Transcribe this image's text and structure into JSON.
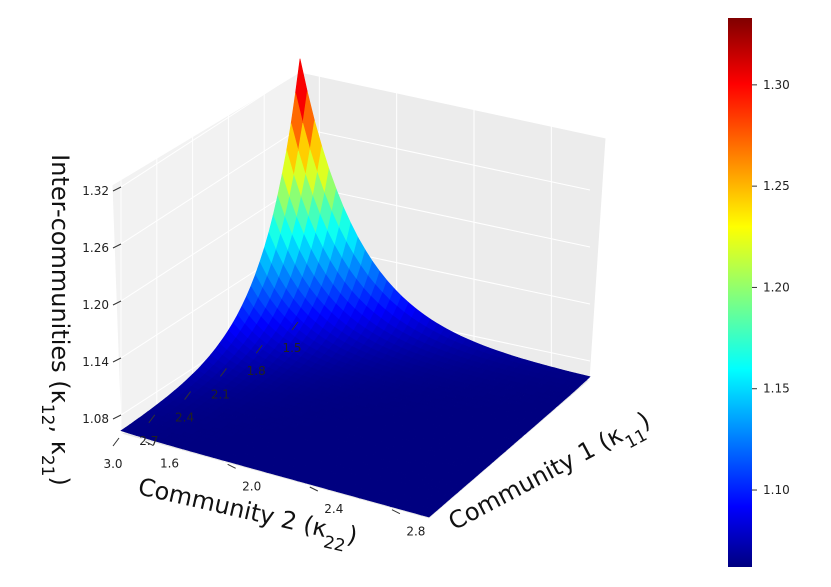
{
  "chart_data": {
    "type": "surface3d",
    "x": {
      "label": "Community 1 (κ",
      "sub": "11",
      "close": ")",
      "ticks": [
        1.6,
        2.0,
        2.4,
        2.8
      ],
      "range": [
        1.5,
        3.0
      ]
    },
    "y": {
      "label": "Community 2 (κ",
      "sub": "22",
      "close": ")",
      "ticks": [
        1.5,
        1.8,
        2.1,
        2.4,
        2.7,
        3.0
      ],
      "range": [
        1.5,
        3.0
      ]
    },
    "z": {
      "label_a": "Inter-communities (κ",
      "sub_a": "12",
      "label_b": ", κ",
      "sub_b": "21",
      "close": ")",
      "ticks": [
        1.08,
        1.14,
        1.2,
        1.26,
        1.32
      ],
      "range": [
        1.06,
        1.34
      ]
    },
    "surface": {
      "peak": {
        "x": 1.5,
        "y": 1.5,
        "z": 1.333
      },
      "floor": {
        "x": 3.0,
        "y": 3.0,
        "z": 1.062
      },
      "colormap": "jet"
    },
    "colorbar": {
      "ticks": [
        1.1,
        1.15,
        1.2,
        1.25,
        1.3
      ],
      "range": [
        1.062,
        1.333
      ]
    }
  }
}
